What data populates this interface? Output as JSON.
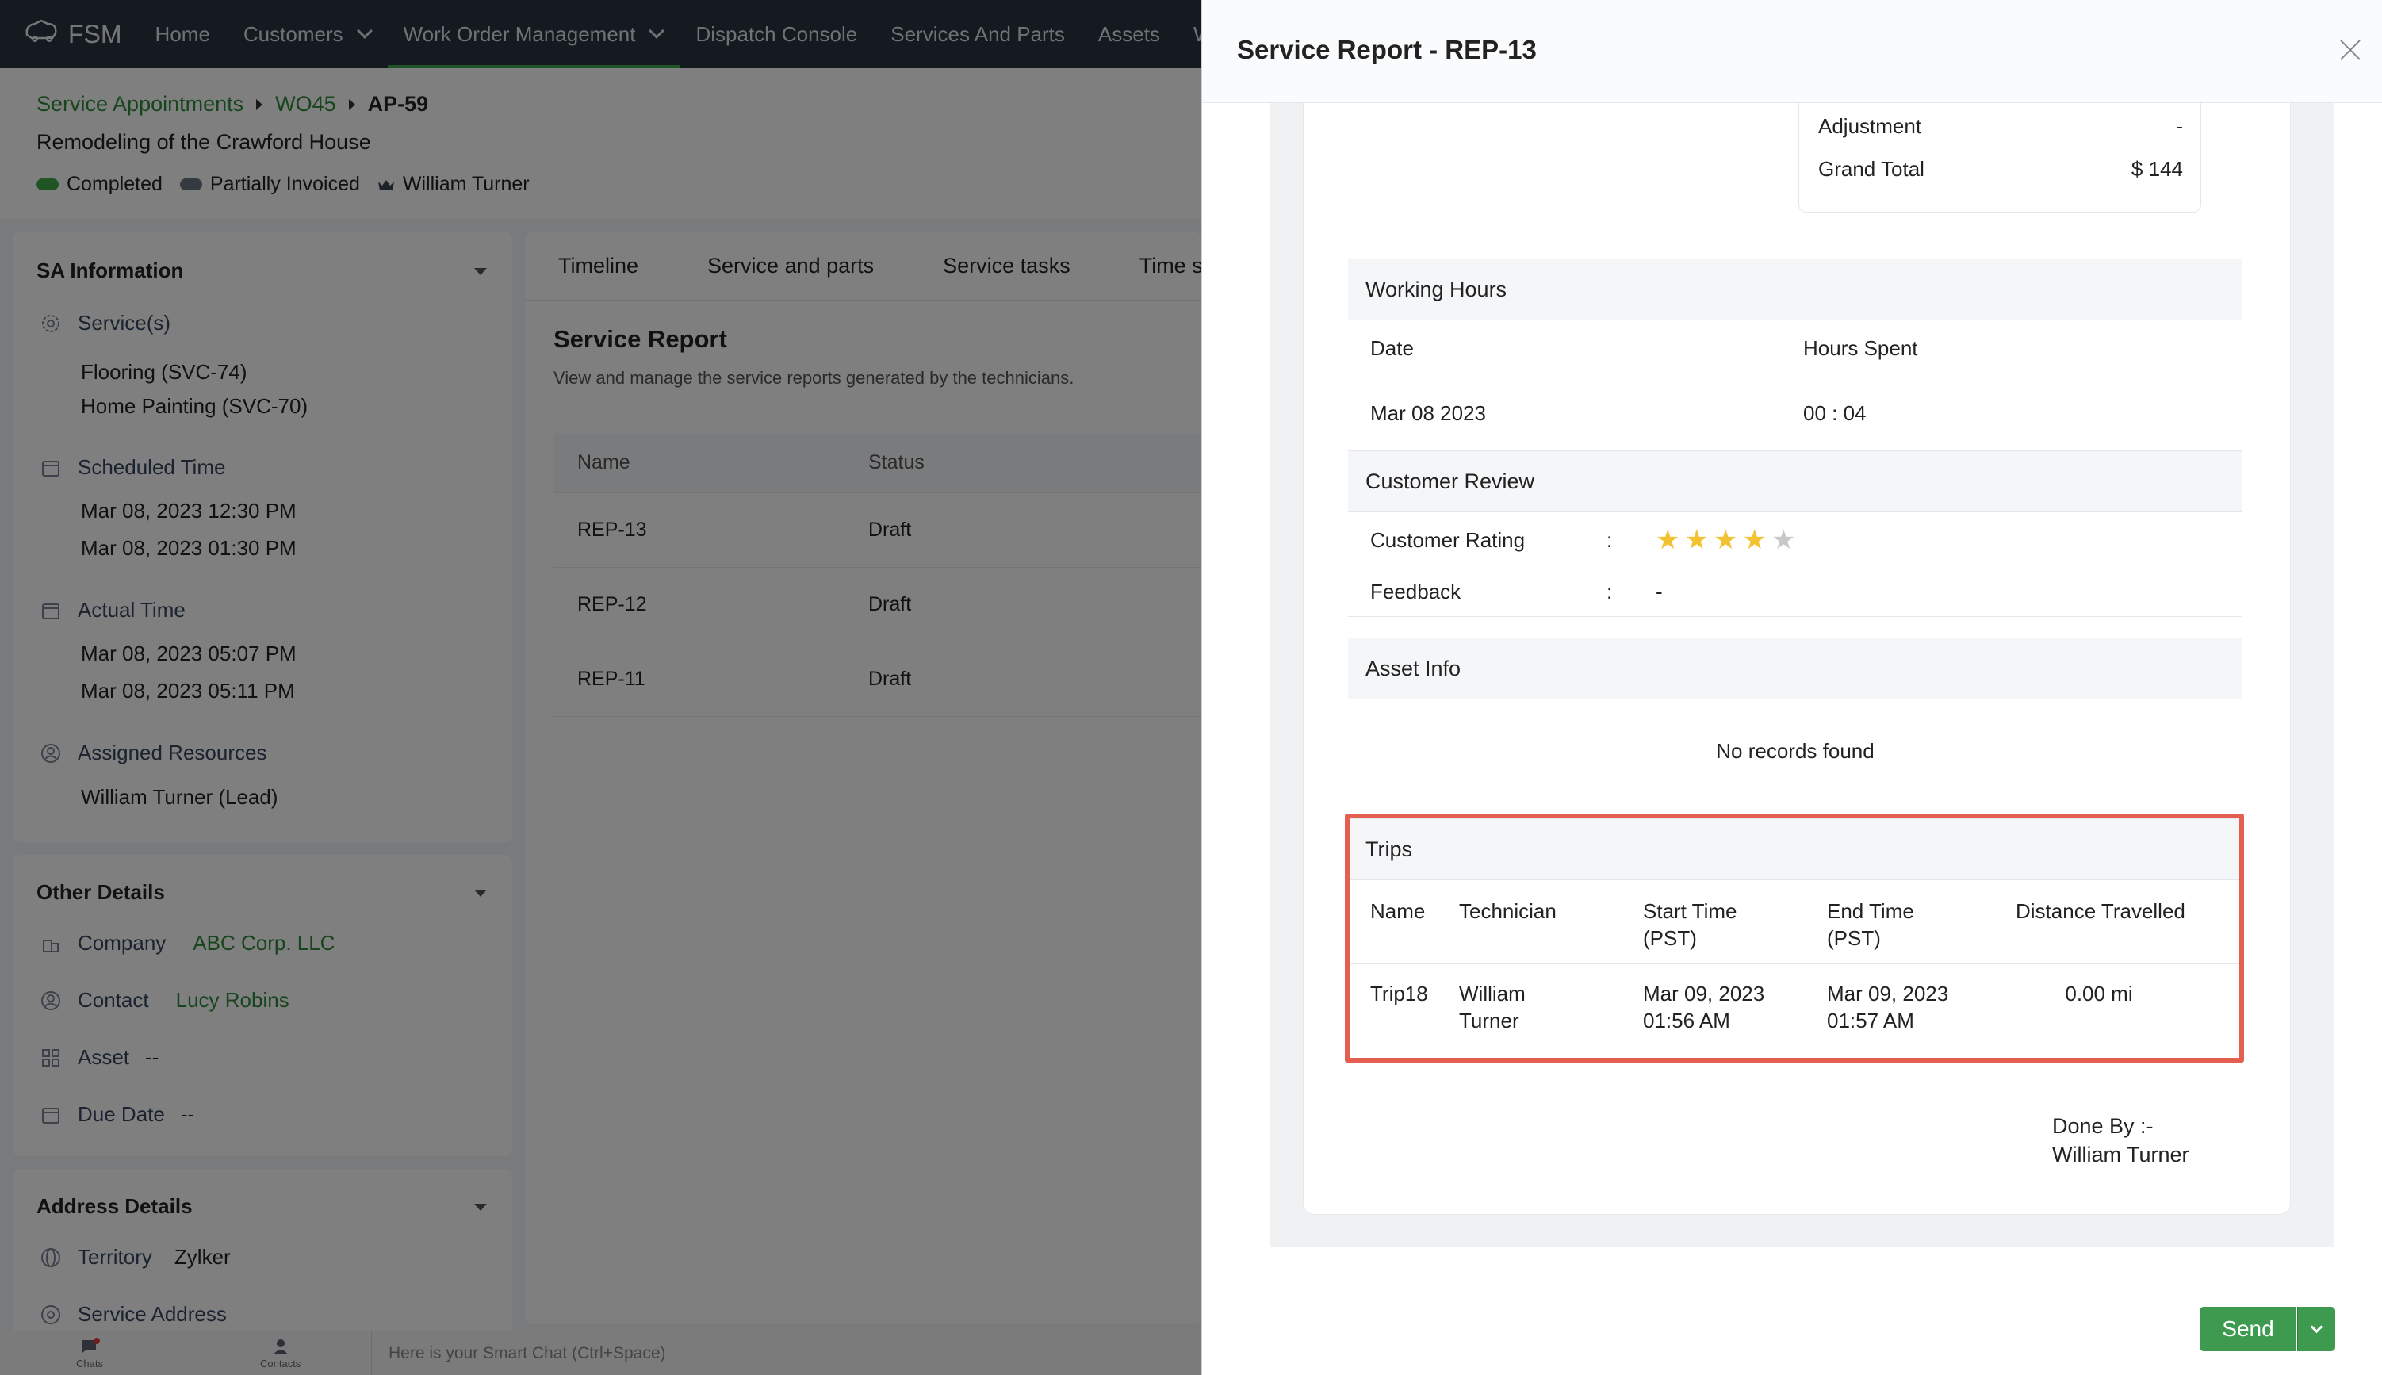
{
  "nav": {
    "brand": "FSM",
    "items": [
      "Home",
      "Customers",
      "Work Order Management",
      "Dispatch Console",
      "Services And Parts",
      "Assets",
      "W"
    ]
  },
  "breadcrumb": {
    "sa": "Service Appointments",
    "wo": "WO45",
    "current": "AP-59"
  },
  "wo_title": "Remodeling of the Crawford House",
  "status": {
    "completed": "Completed",
    "invoiced": "Partially Invoiced",
    "owner": "William Turner"
  },
  "colors": {
    "accent": "#2f8a3a",
    "completed": "#3fa84a",
    "invoiced": "#6b7280",
    "highlight": "#e55f50",
    "star_on": "#f2c230",
    "star_off": "#c8c8c8"
  },
  "sa_info": {
    "title": "SA Information",
    "services_label": "Service(s)",
    "services": [
      "Flooring (SVC-74)",
      "Home Painting (SVC-70)"
    ],
    "scheduled_label": "Scheduled Time",
    "scheduled": [
      "Mar 08, 2023 12:30 PM",
      "Mar 08, 2023 01:30 PM"
    ],
    "actual_label": "Actual Time",
    "actual": [
      "Mar 08, 2023 05:07 PM",
      "Mar 08, 2023 05:11 PM"
    ],
    "resources_label": "Assigned Resources",
    "resources": "William Turner (Lead)"
  },
  "other_details": {
    "title": "Other Details",
    "company_label": "Company",
    "company": "ABC Corp. LLC",
    "contact_label": "Contact",
    "contact": "Lucy Robins",
    "asset_label": "Asset",
    "asset": "--",
    "due_label": "Due Date",
    "due": "--"
  },
  "address_details": {
    "title": "Address Details",
    "territory_label": "Territory",
    "territory": "Zylker",
    "service_address_label": "Service Address"
  },
  "tabs": [
    "Timeline",
    "Service and parts",
    "Service tasks",
    "Time she"
  ],
  "service_report": {
    "title": "Service Report",
    "subtitle": "View and manage the service reports generated by the technicians.",
    "columns": [
      "Name",
      "Status"
    ],
    "rows": [
      {
        "name": "REP-13",
        "status": "Draft"
      },
      {
        "name": "REP-12",
        "status": "Draft"
      },
      {
        "name": "REP-11",
        "status": "Draft"
      }
    ]
  },
  "bottombar": {
    "chats": "Chats",
    "contacts": "Contacts",
    "smart_chat": "Here is your Smart Chat (Ctrl+Space)"
  },
  "modal": {
    "title": "Service Report - REP-13",
    "adjustment_label": "Adjustment",
    "adjustment": "-",
    "grand_total_label": "Grand Total",
    "grand_total": "$ 144",
    "working_hours": {
      "title": "Working Hours",
      "date_label": "Date",
      "hours_label": "Hours Spent",
      "date": "Mar 08 2023",
      "hours": "00 : 04"
    },
    "customer_review": {
      "title": "Customer Review",
      "rating_label": "Customer Rating",
      "rating": 4,
      "rating_max": 5,
      "feedback_label": "Feedback",
      "feedback": "-",
      "colon": ":"
    },
    "asset_info": {
      "title": "Asset Info",
      "empty": "No records found"
    },
    "trips": {
      "title": "Trips",
      "columns": [
        "Name",
        "Technician",
        "Start Time\n(PST)",
        "End Time\n(PST)",
        "Distance Travelled"
      ],
      "row": {
        "name": "Trip18",
        "technician": "William\nTurner",
        "start": "Mar 09, 2023\n01:56 AM",
        "end": "Mar 09, 2023\n01:57 AM",
        "distance": "0.00 mi"
      }
    },
    "done_by_label": "Done By :-",
    "done_by": "William Turner",
    "send_label": "Send"
  }
}
